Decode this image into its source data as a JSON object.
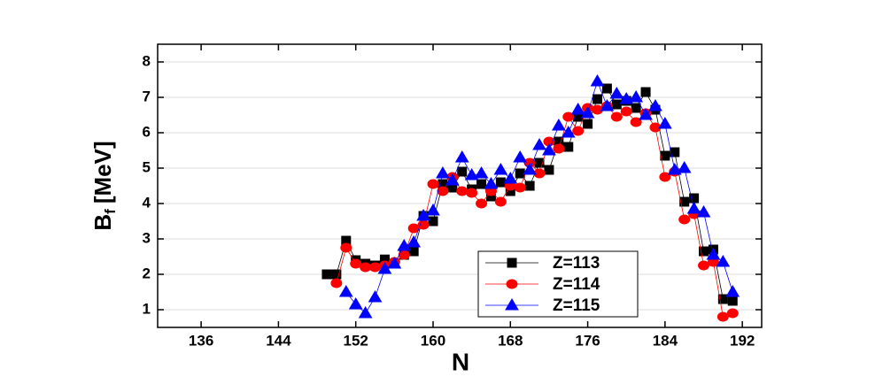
{
  "chart_data": {
    "type": "line",
    "xlabel": "N",
    "ylabel": [
      "B",
      "f",
      "[MeV]"
    ],
    "x": [
      149,
      150,
      151,
      152,
      153,
      154,
      155,
      156,
      157,
      158,
      159,
      160,
      161,
      162,
      163,
      164,
      165,
      166,
      167,
      168,
      169,
      170,
      171,
      172,
      173,
      174,
      175,
      176,
      177,
      178,
      179,
      180,
      181,
      182,
      183,
      184,
      185,
      186,
      187,
      188,
      189,
      190,
      191
    ],
    "xlim": [
      131.5,
      194
    ],
    "xticks": [
      136,
      144,
      152,
      160,
      168,
      176,
      184,
      192
    ],
    "ylim": [
      0.5,
      8.5
    ],
    "yticks": [
      1,
      2,
      3,
      4,
      5,
      6,
      7,
      8
    ],
    "grid": true,
    "legend": "lower right",
    "series": [
      {
        "name": "Z=113",
        "color": "#000000",
        "marker": "square",
        "values": [
          2.0,
          2.0,
          2.95,
          2.4,
          2.3,
          2.25,
          2.42,
          2.3,
          2.55,
          2.65,
          3.65,
          3.5,
          4.55,
          4.45,
          4.9,
          4.4,
          4.55,
          4.2,
          4.6,
          4.35,
          4.85,
          4.5,
          5.15,
          4.95,
          5.75,
          5.6,
          6.45,
          6.25,
          6.95,
          7.25,
          6.8,
          6.9,
          6.7,
          7.15,
          6.65,
          5.35,
          5.45,
          4.05,
          4.15,
          2.65,
          2.7,
          1.3,
          1.25
        ]
      },
      {
        "name": "Z=114",
        "color": "#ff0000",
        "marker": "circle",
        "values": [
          null,
          1.75,
          2.75,
          2.3,
          2.2,
          2.2,
          2.25,
          2.35,
          2.55,
          3.3,
          3.4,
          4.55,
          4.35,
          4.75,
          4.35,
          4.3,
          4.0,
          4.35,
          4.05,
          4.5,
          4.45,
          5.15,
          4.85,
          5.75,
          5.55,
          6.45,
          6.05,
          6.7,
          6.65,
          6.75,
          6.45,
          6.6,
          6.3,
          6.55,
          6.15,
          4.75,
          4.9,
          3.55,
          3.7,
          2.25,
          2.35,
          0.8,
          0.9
        ]
      },
      {
        "name": "Z=115",
        "color": "#0000ff",
        "marker": "triangle",
        "values": [
          null,
          null,
          1.5,
          1.15,
          0.9,
          1.35,
          2.15,
          2.3,
          2.8,
          2.9,
          3.65,
          3.8,
          4.85,
          4.65,
          5.3,
          4.8,
          4.85,
          4.55,
          4.95,
          4.7,
          5.3,
          4.95,
          5.65,
          5.5,
          6.2,
          6.0,
          6.65,
          6.55,
          7.45,
          6.75,
          7.1,
          6.95,
          7.0,
          6.5,
          6.75,
          6.25,
          4.95,
          5.0,
          3.85,
          3.75,
          2.55,
          2.35,
          1.5
        ]
      }
    ]
  }
}
